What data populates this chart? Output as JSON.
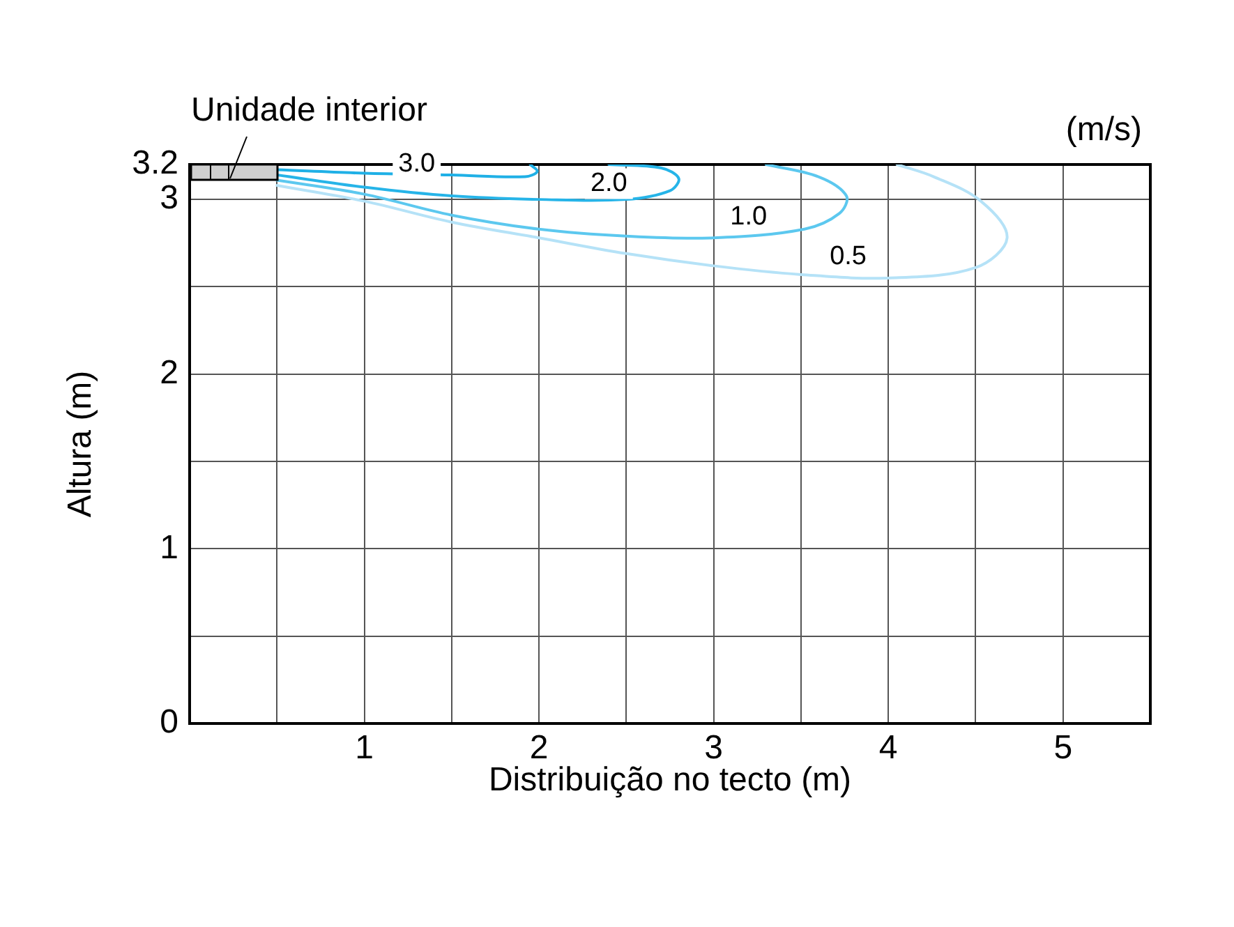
{
  "chart_data": {
    "type": "line",
    "xlabel": "Distribuição no tecto (m)",
    "ylabel": "Altura (m)",
    "xlim": [
      0,
      5.5
    ],
    "ylim": [
      0,
      3.2
    ],
    "xticks": [
      {
        "value": 0,
        "label": null
      },
      {
        "value": 0.5,
        "label": null
      },
      1,
      {
        "value": 1.5,
        "label": null
      },
      2,
      {
        "value": 2.5,
        "label": null
      },
      3,
      {
        "value": 3.5,
        "label": null
      },
      4,
      {
        "value": 4.5,
        "label": null
      },
      5,
      {
        "value": 5.5,
        "label": null
      }
    ],
    "yticks": [
      0,
      {
        "value": 0.5,
        "label": null
      },
      1,
      {
        "value": 1.5,
        "label": null
      },
      2,
      {
        "value": 2.5,
        "label": null
      },
      3,
      3.2
    ],
    "grid": true,
    "marker": "none",
    "series": [
      {
        "color": "#1fb0e6",
        "x": [
          0.5,
          1.0,
          1.5,
          1.92,
          1.99,
          1.95
        ],
        "values": [
          3.17,
          3.15,
          3.14,
          3.13,
          3.16,
          3.2
        ]
      },
      {
        "color": "#26b4e8",
        "x": [
          0.5,
          1.0,
          1.5,
          2.0,
          2.5,
          2.75,
          2.8,
          2.7,
          2.4
        ],
        "values": [
          3.14,
          3.07,
          3.02,
          3.0,
          3.0,
          3.05,
          3.12,
          3.18,
          3.2
        ]
      },
      {
        "color": "#5cc8ef",
        "x": [
          0.5,
          1.0,
          1.5,
          2.0,
          2.5,
          3.0,
          3.52,
          3.72,
          3.76,
          3.6,
          3.3
        ],
        "values": [
          3.11,
          3.03,
          2.91,
          2.83,
          2.79,
          2.78,
          2.83,
          2.92,
          3.02,
          3.13,
          3.2
        ]
      },
      {
        "color": "#b5e2f7",
        "x": [
          0.5,
          1.0,
          1.5,
          2.0,
          2.5,
          3.0,
          3.5,
          4.0,
          4.5,
          4.68,
          4.53,
          4.26,
          4.05
        ],
        "values": [
          3.08,
          2.99,
          2.87,
          2.78,
          2.69,
          2.62,
          2.57,
          2.55,
          2.61,
          2.78,
          2.99,
          3.13,
          3.2
        ]
      }
    ],
    "annotations": [
      "Unidade interior",
      "(m/s)",
      {
        "text": "3.0",
        "x": 1.3,
        "y": 3.2
      },
      {
        "text": "2.0",
        "x": 2.4,
        "y": 3.09
      },
      {
        "text": "1.0",
        "x": 3.2,
        "y": 2.9
      },
      {
        "text": "0.5",
        "x": 3.77,
        "y": 2.67
      }
    ]
  }
}
